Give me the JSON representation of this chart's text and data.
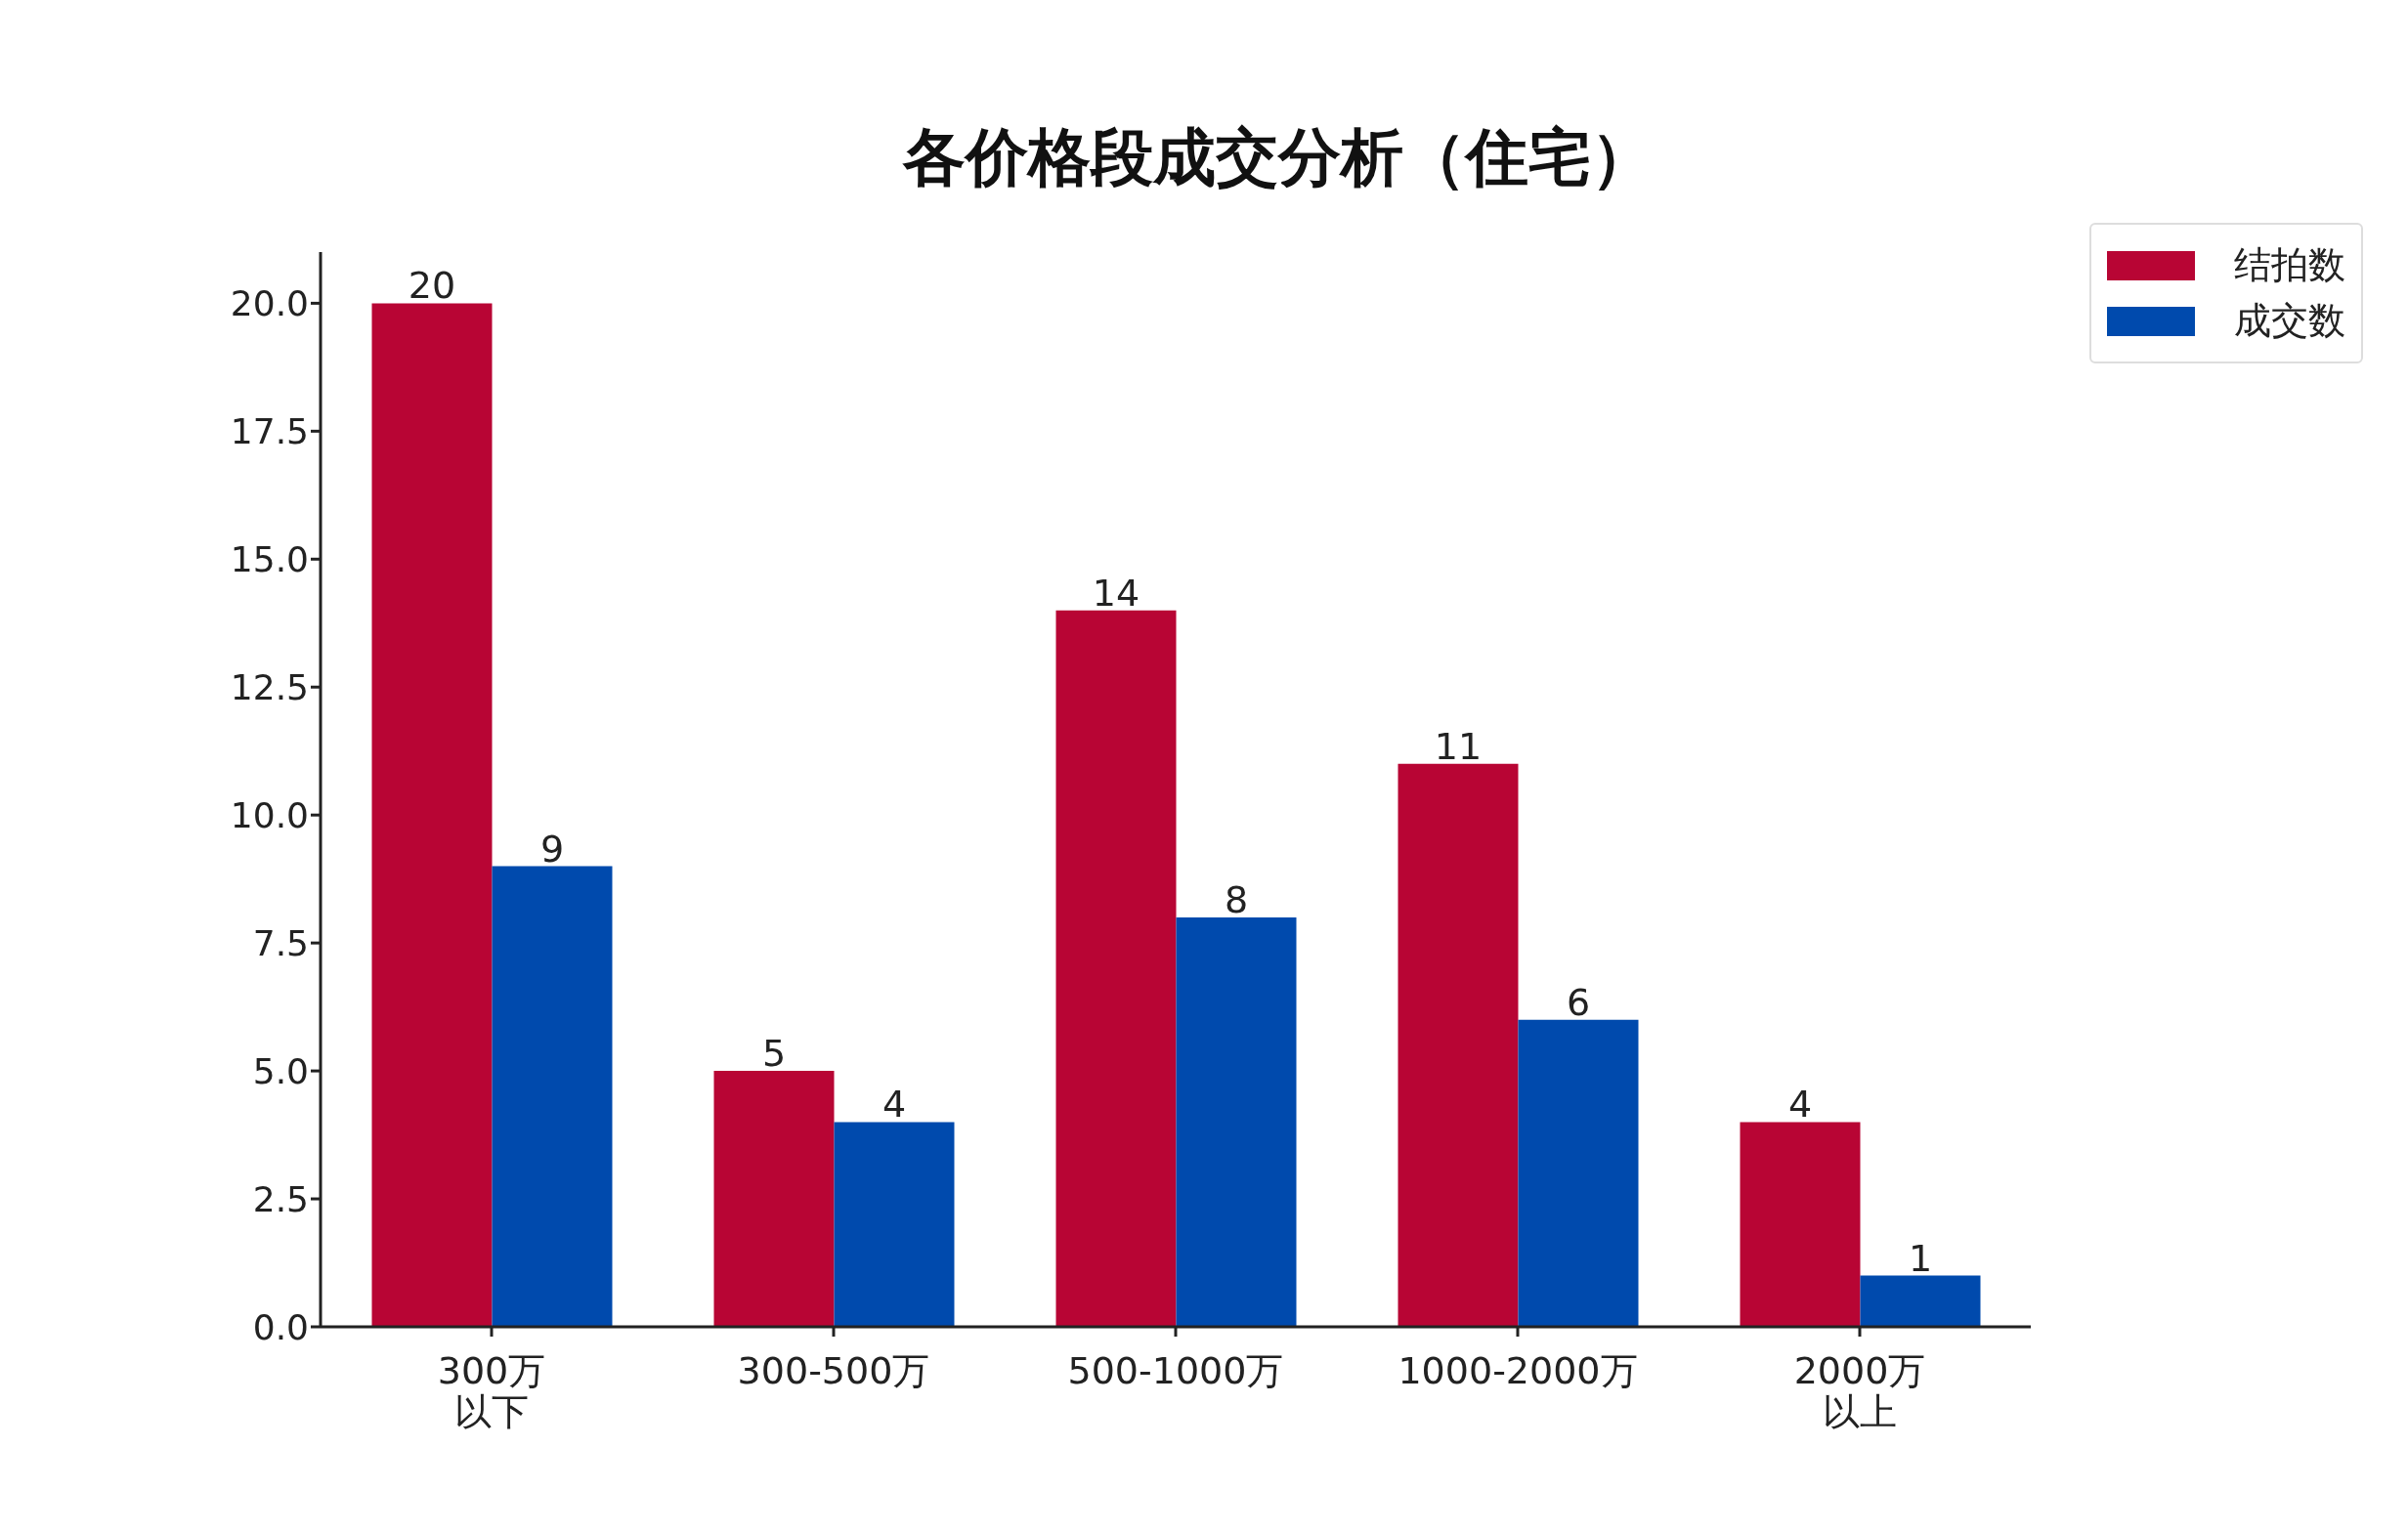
{
  "chart_data": {
    "type": "bar",
    "title": "各价格段成交分析（住宅）",
    "categories": [
      "300万以下",
      "300-500万",
      "500-1000万",
      "1000-2000万",
      "2000万以上"
    ],
    "series": [
      {
        "name": "结拍数",
        "color": "#b80534",
        "values": [
          20,
          5,
          14,
          11,
          4
        ]
      },
      {
        "name": "成交数",
        "color": "#004aad",
        "values": [
          9,
          4,
          8,
          6,
          1
        ]
      }
    ],
    "ylim": [
      0,
      21
    ],
    "yticks": [
      {
        "value": 0,
        "label": "0.0"
      },
      {
        "value": 2.5,
        "label": "2.5"
      },
      {
        "value": 5,
        "label": "5.0"
      },
      {
        "value": 7.5,
        "label": "7.5"
      },
      {
        "value": 10,
        "label": "10.0"
      },
      {
        "value": 12.5,
        "label": "12.5"
      },
      {
        "value": 15,
        "label": "15.0"
      },
      {
        "value": 17.5,
        "label": "17.5"
      },
      {
        "value": 20,
        "label": "20.0"
      }
    ],
    "data_labels": true,
    "legend": "top right",
    "grid": false
  }
}
